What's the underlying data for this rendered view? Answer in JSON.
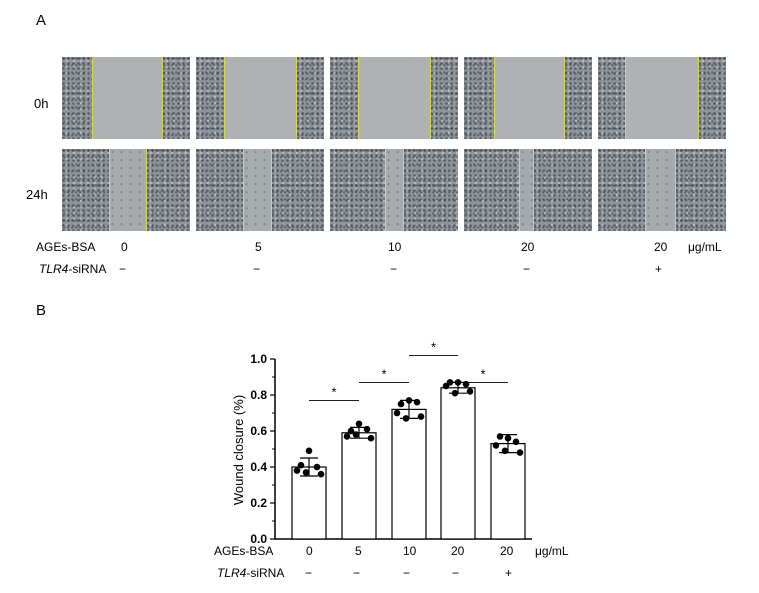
{
  "panel_a": {
    "letter": "A",
    "rows": [
      "0h",
      "24h"
    ],
    "treatment_label": "AGEs-BSA",
    "treatment_values": [
      "0",
      "5",
      "10",
      "20",
      "20"
    ],
    "treatment_unit": "μg/mL",
    "sirna_label_italic": "TLR4",
    "sirna_label_rest": "-siRNA",
    "sirna_values": [
      "−",
      "−",
      "−",
      "−",
      "+"
    ],
    "wound_colors": {
      "edge_line": "#d7d84a"
    }
  },
  "panel_b": {
    "letter": "B",
    "treatment_label": "AGEs-BSA",
    "treatment_values": [
      "0",
      "5",
      "10",
      "20",
      "20"
    ],
    "treatment_unit": "μg/mL",
    "sirna_label_italic": "TLR4",
    "sirna_label_rest": "-siRNA",
    "sirna_values": [
      "−",
      "−",
      "−",
      "−",
      "+"
    ],
    "significance_mark": "*"
  },
  "chart_data": {
    "type": "bar",
    "categories": [
      "0",
      "5",
      "10",
      "20",
      "20"
    ],
    "values": [
      0.4,
      0.59,
      0.72,
      0.84,
      0.53
    ],
    "error": [
      0.05,
      0.03,
      0.05,
      0.03,
      0.05
    ],
    "points": [
      [
        0.49,
        0.41,
        0.4,
        0.38,
        0.36,
        0.37
      ],
      [
        0.64,
        0.6,
        0.61,
        0.57,
        0.56,
        0.58
      ],
      [
        0.77,
        0.75,
        0.76,
        0.7,
        0.68,
        0.67
      ],
      [
        0.87,
        0.87,
        0.86,
        0.85,
        0.82,
        0.81
      ],
      [
        0.56,
        0.57,
        0.54,
        0.52,
        0.48,
        0.49
      ]
    ],
    "ylabel": "Wound closure (%)",
    "ylim": [
      0,
      1.0
    ],
    "yticks": [
      "0.0",
      "0.2",
      "0.4",
      "0.6",
      "0.8",
      "1.0"
    ],
    "significance": [
      {
        "from": 0,
        "to": 1,
        "level": 0.77
      },
      {
        "from": 1,
        "to": 2,
        "level": 0.87
      },
      {
        "from": 2,
        "to": 3,
        "level": 1.02
      },
      {
        "from": 3,
        "to": 4,
        "level": 0.87
      }
    ]
  }
}
